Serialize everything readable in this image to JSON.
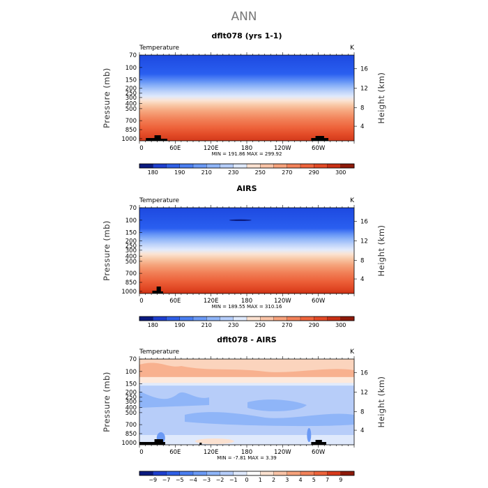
{
  "figure_title": "ANN",
  "chart_data": [
    {
      "type": "heatmap",
      "title": "dflt078 (yrs 1-1)",
      "variable_label": "Temperature",
      "units_label": "K",
      "ylabel": "Pressure (mb)",
      "ylabel_right": "Height (km)",
      "x_tick_labels": [
        "0",
        "60E",
        "120E",
        "180",
        "120W",
        "60W"
      ],
      "y_tick_labels": [
        "70",
        "100",
        "150",
        "200",
        "250",
        "300",
        "400",
        "500",
        "700",
        "850",
        "1000"
      ],
      "y_tick_labels_right": [
        "16",
        "12",
        "8",
        "4"
      ],
      "stats_text": "MIN = 191.86   MAX = 299.92",
      "colorbar_labels": [
        "180",
        "190",
        "210",
        "230",
        "250",
        "270",
        "290",
        "300"
      ],
      "min": 191.86,
      "max": 299.92
    },
    {
      "type": "heatmap",
      "title": "AIRS",
      "variable_label": "Temperature",
      "units_label": "K",
      "ylabel": "Pressure (mb)",
      "ylabel_right": "Height (km)",
      "x_tick_labels": [
        "0",
        "60E",
        "120E",
        "180",
        "120W",
        "60W"
      ],
      "y_tick_labels": [
        "70",
        "100",
        "150",
        "200",
        "250",
        "300",
        "400",
        "500",
        "700",
        "850",
        "1000"
      ],
      "y_tick_labels_right": [
        "16",
        "12",
        "8",
        "4"
      ],
      "stats_text": "MIN = 189.55   MAX = 310.16",
      "colorbar_labels": [
        "180",
        "190",
        "210",
        "230",
        "250",
        "270",
        "290",
        "300"
      ],
      "min": 189.55,
      "max": 310.16
    },
    {
      "type": "heatmap",
      "title": "dflt078 - AIRS",
      "variable_label": "Temperature",
      "units_label": "K",
      "ylabel": "Pressure (mb)",
      "ylabel_right": "Height (km)",
      "x_tick_labels": [
        "0",
        "60E",
        "120E",
        "180",
        "120W",
        "60W"
      ],
      "y_tick_labels": [
        "70",
        "100",
        "150",
        "200",
        "250",
        "300",
        "400",
        "500",
        "700",
        "850",
        "1000"
      ],
      "y_tick_labels_right": [
        "16",
        "12",
        "8",
        "4"
      ],
      "stats_text": "MIN =   -7.81   MAX =     3.39",
      "colorbar_labels": [
        "−9",
        "−7",
        "−5",
        "−4",
        "−3",
        "−2",
        "−1",
        "0",
        "1",
        "2",
        "3",
        "4",
        "5",
        "7",
        "9"
      ],
      "min": -7.81,
      "max": 3.39
    }
  ],
  "palette_abs": [
    "#0a1a80",
    "#1e3fcf",
    "#2f5fe6",
    "#4a7ef0",
    "#6b9af5",
    "#8fb5f8",
    "#b5cdfa",
    "#dfe9fc",
    "#fbe1d0",
    "#f9c3a6",
    "#f6a27c",
    "#f2825a",
    "#ee643c",
    "#e24a26",
    "#c93015",
    "#8e1a0a"
  ],
  "palette_diff": [
    "#0a1a80",
    "#1e3fcf",
    "#2f5fe6",
    "#4a7ef0",
    "#6b9af5",
    "#8fb5f8",
    "#b5cdfa",
    "#dfe9fc",
    "#ffffff",
    "#fbe1d0",
    "#f9c3a6",
    "#f6a27c",
    "#f2825a",
    "#ee643c",
    "#d83a1c",
    "#8e1a0a"
  ],
  "terrain_color": "#000000"
}
